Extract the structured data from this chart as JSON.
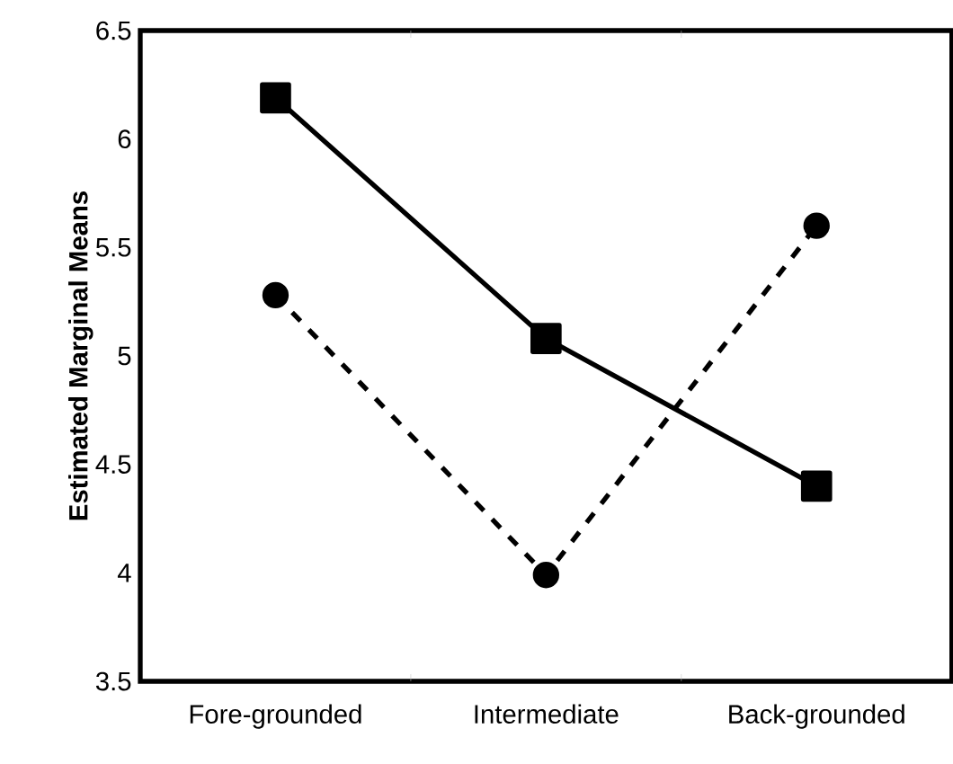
{
  "chart_data": {
    "type": "line",
    "ylabel": "Estimated Marginal Means",
    "categories": [
      "Fore-grounded",
      "Intermediate",
      "Back-grounded"
    ],
    "series": [
      {
        "color": "#000000",
        "values": [
          6.19,
          5.08,
          4.4
        ],
        "marker": "square",
        "line_style": "solid"
      },
      {
        "color": "#000000",
        "values": [
          5.28,
          3.99,
          5.6
        ],
        "marker": "circle",
        "line_style": "dashed"
      }
    ],
    "ylim": [
      3.5,
      6.5
    ],
    "yticks": [
      3.5,
      4,
      4.5,
      5,
      5.5,
      6,
      6.5
    ],
    "grid": false
  }
}
